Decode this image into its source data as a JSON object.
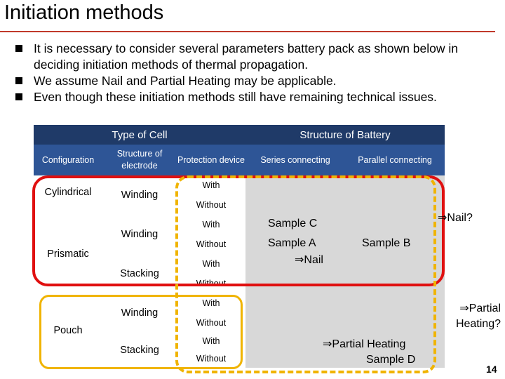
{
  "slide": {
    "title": "Initiation methods",
    "bullets": [
      "It is necessary to consider several parameters battery pack as shown below in deciding initiation methods of thermal propagation.",
      "We assume Nail and Partial Heating may be applicable.",
      "Even though these initiation methods still have remaining technical issues."
    ],
    "page_number": "14"
  },
  "table": {
    "group_headers": {
      "cell_type": "Type of Cell",
      "battery_structure": "Structure of Battery"
    },
    "column_headers": {
      "configuration": "Configuration",
      "electrode": "Structure of electrode",
      "protection": "Protection device",
      "series": "Series connecting",
      "parallel": "Parallel connecting"
    },
    "configurations": [
      "Cylindrical",
      "Prismatic",
      "Pouch"
    ],
    "electrodes": [
      "Winding",
      "Winding",
      "Stacking",
      "Winding",
      "Stacking"
    ],
    "protection": [
      "With",
      "Without",
      "With",
      "Without",
      "With",
      "Without",
      "With",
      "Without",
      "With",
      "Without"
    ]
  },
  "samples": {
    "sample_c": "Sample C",
    "sample_a": "Sample A",
    "nail_a": "⇒Nail",
    "sample_b": "Sample B",
    "partial_heating": "⇒Partial  Heating",
    "sample_d": "Sample D"
  },
  "notes": {
    "nail_q": "⇒Nail?",
    "partial_q_line1": "⇒Partial",
    "partial_q_line2": "Heating?"
  },
  "colors": {
    "header_dark": "#1f3a68",
    "header_mid": "#2e5596",
    "table_body": "#d8d8d8",
    "red_outline": "#e01010",
    "yellow_outline": "#f0b400",
    "title_rule": "#c0392b"
  }
}
